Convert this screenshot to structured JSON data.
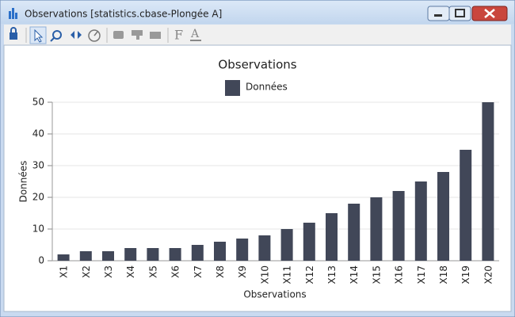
{
  "window": {
    "title": "Observations [statistics.cbase-Plongée A]"
  },
  "chart_data": {
    "type": "bar",
    "title": "Observations",
    "x_label": "Observations",
    "y_label": "Données",
    "categories": [
      "X1",
      "X2",
      "X3",
      "X4",
      "X5",
      "X6",
      "X7",
      "X8",
      "X9",
      "X10",
      "X11",
      "X12",
      "X13",
      "X14",
      "X15",
      "X16",
      "X17",
      "X18",
      "X19",
      "X20"
    ],
    "series": [
      {
        "name": "Données",
        "color": "#414758",
        "values": [
          2,
          3,
          3,
          4,
          4,
          4,
          5,
          6,
          7,
          8,
          10,
          12,
          15,
          18,
          20,
          22,
          25,
          28,
          35,
          50
        ]
      }
    ],
    "ylim": [
      0,
      50
    ],
    "yticks": [
      0,
      10,
      20,
      30,
      40,
      50
    ],
    "grid": true,
    "legend": "top"
  }
}
